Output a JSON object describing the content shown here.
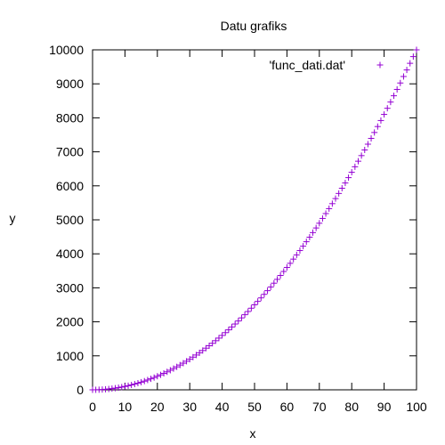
{
  "chart_data": {
    "type": "scatter",
    "title": "Datu grafiks",
    "xlabel": "x",
    "ylabel": "y",
    "xlim": [
      0,
      100
    ],
    "ylim": [
      0,
      10000
    ],
    "xticks": [
      "0",
      "10",
      "20",
      "30",
      "40",
      "50",
      "60",
      "70",
      "80",
      "90",
      "100"
    ],
    "yticks": [
      "0",
      "1000",
      "2000",
      "3000",
      "4000",
      "5000",
      "6000",
      "7000",
      "8000",
      "9000",
      "10000"
    ],
    "grid": false,
    "legend_position": "top-right",
    "marker": "plus",
    "series": [
      {
        "name": "'func_dati.dat'",
        "color": "#9400d3",
        "x": [
          0,
          1,
          2,
          3,
          4,
          5,
          6,
          7,
          8,
          9,
          10,
          11,
          12,
          13,
          14,
          15,
          16,
          17,
          18,
          19,
          20,
          21,
          22,
          23,
          24,
          25,
          26,
          27,
          28,
          29,
          30,
          31,
          32,
          33,
          34,
          35,
          36,
          37,
          38,
          39,
          40,
          41,
          42,
          43,
          44,
          45,
          46,
          47,
          48,
          49,
          50,
          51,
          52,
          53,
          54,
          55,
          56,
          57,
          58,
          59,
          60,
          61,
          62,
          63,
          64,
          65,
          66,
          67,
          68,
          69,
          70,
          71,
          72,
          73,
          74,
          75,
          76,
          77,
          78,
          79,
          80,
          81,
          82,
          83,
          84,
          85,
          86,
          87,
          88,
          89,
          90,
          91,
          92,
          93,
          94,
          95,
          96,
          97,
          98,
          99,
          100
        ],
        "y": [
          0,
          1,
          4,
          9,
          16,
          25,
          36,
          49,
          64,
          81,
          100,
          121,
          144,
          169,
          196,
          225,
          256,
          289,
          324,
          361,
          400,
          441,
          484,
          529,
          576,
          625,
          676,
          729,
          784,
          841,
          900,
          961,
          1024,
          1089,
          1156,
          1225,
          1296,
          1369,
          1444,
          1521,
          1600,
          1681,
          1764,
          1849,
          1936,
          2025,
          2116,
          2209,
          2304,
          2401,
          2500,
          2601,
          2704,
          2809,
          2916,
          3025,
          3136,
          3249,
          3364,
          3481,
          3600,
          3721,
          3844,
          3969,
          4096,
          4225,
          4356,
          4489,
          4624,
          4761,
          4900,
          5041,
          5184,
          5329,
          5476,
          5625,
          5776,
          5929,
          6084,
          6241,
          6400,
          6561,
          6724,
          6889,
          7056,
          7225,
          7396,
          7569,
          7744,
          7921,
          8100,
          8281,
          8464,
          8649,
          8836,
          9025,
          9216,
          9409,
          9604,
          9801,
          10000
        ]
      }
    ]
  }
}
